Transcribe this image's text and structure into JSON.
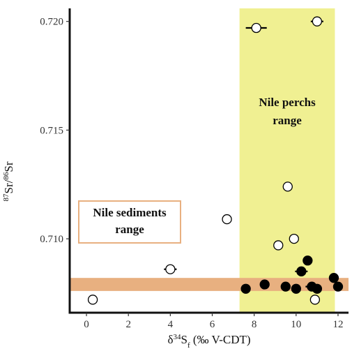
{
  "chart_data": {
    "type": "scatter",
    "xlabel": {
      "delta": "δ",
      "sup": "34",
      "main": "S",
      "sub": "f",
      "rest": " (‰ V-CDT)"
    },
    "ylabel": {
      "sup1": "87",
      "main1": "Sr/",
      "sup2": "86",
      "main2": "Sr"
    },
    "xlim": [
      -0.8,
      12.5
    ],
    "ylim": [
      0.7066,
      0.7206
    ],
    "xticks": [
      0,
      2,
      4,
      6,
      8,
      10,
      12
    ],
    "yticks": [
      0.71,
      0.715,
      0.72
    ],
    "ytick_labels": [
      "0.710",
      "0.715",
      "0.720"
    ],
    "grid": false,
    "regions": [
      {
        "label_lines": [
          "Nile perchs",
          "range"
        ],
        "orientation": "vertical",
        "x_range": [
          7.3,
          11.85
        ],
        "color": "#f0f092"
      },
      {
        "label_lines": [
          "Nile sediments",
          "range"
        ],
        "orientation": "horizontal",
        "y_range": [
          0.7076,
          0.7082
        ],
        "color": "#e8b080"
      }
    ],
    "series": [
      {
        "marker": "open-circle",
        "points": [
          {
            "x": 0.3,
            "y": 0.7072,
            "xerr": 0.2
          },
          {
            "x": 4.0,
            "y": 0.7086,
            "xerr": 0.3
          },
          {
            "x": 6.7,
            "y": 0.7109,
            "xerr": 0
          },
          {
            "x": 8.1,
            "y": 0.7197,
            "xerr": 0.5
          },
          {
            "x": 9.6,
            "y": 0.7124,
            "xerr": 0
          },
          {
            "x": 9.9,
            "y": 0.71,
            "xerr": 0
          },
          {
            "x": 9.15,
            "y": 0.7097,
            "xerr": 0
          },
          {
            "x": 11.0,
            "y": 0.72,
            "xerr": 0.3
          },
          {
            "x": 10.9,
            "y": 0.7072,
            "xerr": 0
          }
        ]
      },
      {
        "marker": "filled-circle",
        "points": [
          {
            "x": 7.6,
            "y": 0.7077,
            "xerr": 0
          },
          {
            "x": 8.5,
            "y": 0.7079,
            "xerr": 0
          },
          {
            "x": 9.5,
            "y": 0.7078,
            "xerr": 0
          },
          {
            "x": 10.0,
            "y": 0.7077,
            "xerr": 0
          },
          {
            "x": 10.25,
            "y": 0.7085,
            "xerr": 0.3
          },
          {
            "x": 10.55,
            "y": 0.709,
            "xerr": 0
          },
          {
            "x": 10.75,
            "y": 0.7078,
            "xerr": 0.3
          },
          {
            "x": 11.0,
            "y": 0.7077,
            "xerr": 0
          },
          {
            "x": 11.8,
            "y": 0.7082,
            "xerr": 0
          },
          {
            "x": 12.0,
            "y": 0.7078,
            "xerr": 0
          }
        ]
      }
    ]
  }
}
